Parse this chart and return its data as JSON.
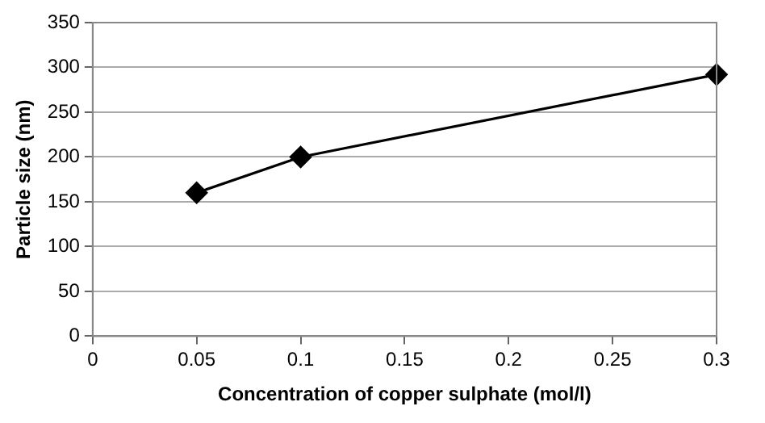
{
  "chart_data": {
    "type": "line",
    "xlabel": "Concentration of copper sulphate (mol/l)",
    "ylabel": "Particle size (nm)",
    "x": [
      0.05,
      0.1,
      0.3
    ],
    "series": [
      {
        "color": "#000000",
        "values": [
          160,
          200,
          292
        ]
      }
    ],
    "xlim": [
      0,
      0.3
    ],
    "xticks": [
      0,
      0.05,
      0.1,
      0.15,
      0.2,
      0.25,
      0.3
    ],
    "ylim": [
      0,
      350
    ],
    "yticks": [
      0,
      50,
      100,
      150,
      200,
      250,
      300,
      350
    ],
    "grid": "y",
    "legend": false,
    "marker": "diamond",
    "line_style": "solid"
  }
}
